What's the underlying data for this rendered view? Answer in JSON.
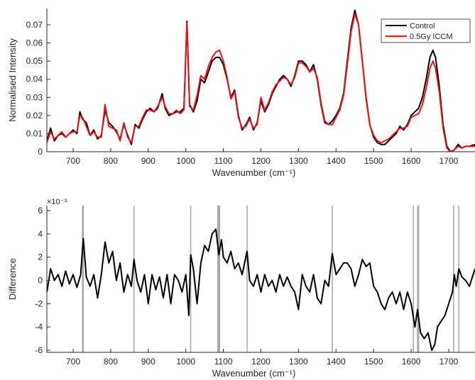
{
  "chart_data": [
    {
      "type": "line",
      "ylabel": "Normalised Intensity",
      "xlabel": "Wavenumber (cm⁻¹)",
      "legend": "upper right",
      "xlim": [
        630,
        1770
      ],
      "ylim": [
        0,
        0.079
      ],
      "xticks": [
        700,
        800,
        900,
        1000,
        1100,
        1200,
        1300,
        1400,
        1500,
        1600,
        1700
      ],
      "yticks": [
        0,
        0.01,
        0.02,
        0.03,
        0.04,
        0.05,
        0.06,
        0.07
      ],
      "x": [
        630,
        640,
        650,
        660,
        670,
        680,
        690,
        700,
        710,
        718,
        725,
        735,
        745,
        755,
        765,
        775,
        785,
        795,
        805,
        815,
        825,
        835,
        845,
        855,
        865,
        875,
        885,
        895,
        905,
        915,
        925,
        937,
        945,
        955,
        965,
        975,
        985,
        995,
        1003,
        1010,
        1020,
        1030,
        1040,
        1050,
        1060,
        1070,
        1080,
        1090,
        1100,
        1110,
        1120,
        1130,
        1140,
        1150,
        1160,
        1170,
        1180,
        1190,
        1200,
        1210,
        1220,
        1230,
        1240,
        1250,
        1260,
        1270,
        1280,
        1290,
        1300,
        1310,
        1320,
        1330,
        1340,
        1350,
        1360,
        1370,
        1380,
        1390,
        1400,
        1410,
        1420,
        1430,
        1440,
        1450,
        1460,
        1470,
        1480,
        1490,
        1500,
        1510,
        1520,
        1530,
        1540,
        1550,
        1560,
        1570,
        1580,
        1590,
        1600,
        1610,
        1620,
        1630,
        1640,
        1650,
        1658,
        1665,
        1675,
        1685,
        1695,
        1705,
        1715,
        1725,
        1735,
        1745,
        1755,
        1770
      ],
      "series": [
        {
          "name": "Control",
          "color": "#000000",
          "values": [
            0.006,
            0.013,
            0.006,
            0.009,
            0.01,
            0.008,
            0.01,
            0.012,
            0.01,
            0.022,
            0.018,
            0.016,
            0.009,
            0.012,
            0.007,
            0.009,
            0.023,
            0.016,
            0.014,
            0.011,
            0.007,
            0.015,
            0.009,
            0.004,
            0.015,
            0.013,
            0.018,
            0.022,
            0.024,
            0.022,
            0.024,
            0.032,
            0.024,
            0.02,
            0.021,
            0.022,
            0.022,
            0.024,
            0.072,
            0.026,
            0.022,
            0.028,
            0.04,
            0.038,
            0.044,
            0.05,
            0.052,
            0.052,
            0.048,
            0.04,
            0.03,
            0.034,
            0.02,
            0.012,
            0.015,
            0.019,
            0.012,
            0.016,
            0.028,
            0.022,
            0.026,
            0.032,
            0.036,
            0.04,
            0.042,
            0.04,
            0.036,
            0.042,
            0.05,
            0.05,
            0.048,
            0.044,
            0.048,
            0.04,
            0.026,
            0.016,
            0.015,
            0.017,
            0.02,
            0.024,
            0.032,
            0.05,
            0.068,
            0.078,
            0.07,
            0.05,
            0.03,
            0.015,
            0.008,
            0.005,
            0.004,
            0.004,
            0.006,
            0.008,
            0.01,
            0.014,
            0.012,
            0.015,
            0.02,
            0.022,
            0.024,
            0.03,
            0.04,
            0.052,
            0.056,
            0.052,
            0.036,
            0.015,
            0.003,
            0.0,
            0.001,
            0.004,
            0.002,
            0.003,
            0.003,
            0.004
          ]
        },
        {
          "name": "0.5Gy ICCM",
          "color": "#e8141b",
          "values": [
            0.005,
            0.011,
            0.007,
            0.009,
            0.011,
            0.008,
            0.01,
            0.011,
            0.011,
            0.02,
            0.019,
            0.014,
            0.009,
            0.011,
            0.008,
            0.008,
            0.026,
            0.014,
            0.013,
            0.012,
            0.006,
            0.016,
            0.008,
            0.005,
            0.014,
            0.014,
            0.019,
            0.023,
            0.023,
            0.022,
            0.025,
            0.03,
            0.025,
            0.021,
            0.021,
            0.023,
            0.021,
            0.023,
            0.071,
            0.025,
            0.023,
            0.031,
            0.042,
            0.04,
            0.047,
            0.052,
            0.055,
            0.056,
            0.05,
            0.041,
            0.029,
            0.033,
            0.019,
            0.013,
            0.014,
            0.018,
            0.013,
            0.015,
            0.03,
            0.023,
            0.027,
            0.033,
            0.037,
            0.039,
            0.041,
            0.04,
            0.037,
            0.041,
            0.049,
            0.049,
            0.047,
            0.044,
            0.046,
            0.041,
            0.027,
            0.017,
            0.015,
            0.015,
            0.019,
            0.023,
            0.031,
            0.048,
            0.066,
            0.076,
            0.07,
            0.05,
            0.029,
            0.015,
            0.009,
            0.006,
            0.005,
            0.006,
            0.007,
            0.009,
            0.011,
            0.013,
            0.013,
            0.014,
            0.019,
            0.02,
            0.021,
            0.026,
            0.035,
            0.046,
            0.05,
            0.046,
            0.033,
            0.013,
            0.002,
            0.0,
            0.001,
            0.003,
            0.002,
            0.003,
            0.003,
            0.003
          ]
        }
      ]
    },
    {
      "type": "line",
      "ylabel": "Difference",
      "xlabel": "Wavenumber (cm⁻¹)",
      "y_multiplier": "×10⁻³",
      "xlim": [
        630,
        1770
      ],
      "ylim": [
        -6.18,
        6.43
      ],
      "xticks": [
        700,
        800,
        900,
        1000,
        1100,
        1200,
        1300,
        1400,
        1500,
        1600,
        1700
      ],
      "yticks": [
        -6,
        -4,
        -2,
        0,
        2,
        4,
        6
      ],
      "highlight_x": [
        725,
        727,
        862,
        1013,
        1085,
        1087,
        1090,
        1163,
        1390,
        1606,
        1617,
        1620,
        1713,
        1727
      ],
      "highlight_color": "#a6a6a6",
      "x": [
        630,
        640,
        650,
        660,
        670,
        680,
        690,
        700,
        710,
        720,
        727,
        735,
        745,
        755,
        765,
        775,
        785,
        795,
        805,
        815,
        825,
        835,
        845,
        855,
        862,
        870,
        880,
        890,
        900,
        910,
        920,
        930,
        940,
        950,
        960,
        970,
        980,
        990,
        1000,
        1008,
        1013,
        1020,
        1030,
        1040,
        1050,
        1060,
        1070,
        1080,
        1088,
        1095,
        1100,
        1110,
        1120,
        1130,
        1140,
        1150,
        1163,
        1170,
        1180,
        1190,
        1200,
        1210,
        1220,
        1230,
        1240,
        1250,
        1260,
        1270,
        1280,
        1290,
        1300,
        1310,
        1320,
        1330,
        1340,
        1350,
        1360,
        1370,
        1380,
        1390,
        1400,
        1410,
        1420,
        1430,
        1440,
        1450,
        1460,
        1470,
        1480,
        1490,
        1500,
        1510,
        1520,
        1530,
        1540,
        1550,
        1560,
        1570,
        1580,
        1590,
        1600,
        1610,
        1617,
        1625,
        1635,
        1645,
        1655,
        1663,
        1670,
        1680,
        1690,
        1700,
        1710,
        1715,
        1720,
        1727,
        1735,
        1745,
        1755,
        1765,
        1770
      ],
      "series": [
        {
          "color": "#000000",
          "values": [
            -1,
            1,
            0,
            0.5,
            -0.5,
            0.8,
            -0.3,
            0.5,
            -0.6,
            0.5,
            3.6,
            0.3,
            -0.5,
            0.5,
            -1.5,
            0.5,
            3.3,
            1.5,
            2.5,
            0,
            1.5,
            -1,
            0.5,
            -0.5,
            1.8,
            0,
            -1,
            0.5,
            -2,
            0.5,
            -0.8,
            0.3,
            -1.5,
            0.5,
            -2,
            0.5,
            0,
            -1,
            0.5,
            -3,
            2.2,
            1,
            -2,
            1.5,
            3,
            2.5,
            4,
            4.4,
            2.2,
            3.5,
            2,
            1.5,
            2.5,
            1,
            1.5,
            0.5,
            2.5,
            0,
            -0.5,
            0.5,
            -1,
            0.5,
            -0.5,
            0,
            -1,
            0.5,
            -0.5,
            0.3,
            -0.5,
            -1,
            -2.5,
            0.5,
            -0.5,
            -1,
            0.5,
            -1.5,
            -2,
            0,
            -0.5,
            2.3,
            0.5,
            1,
            1.5,
            1.5,
            1,
            -0.5,
            0.5,
            1.8,
            1.2,
            1.5,
            -0.5,
            -1,
            -2,
            -2.5,
            -1.5,
            -1,
            -2,
            -1,
            -2.5,
            -1,
            -2,
            -4,
            -2.5,
            -4.5,
            -5,
            -4.5,
            -6,
            -5.5,
            -4,
            -3.5,
            -3,
            -2,
            -1,
            0.5,
            -0.5,
            1,
            0.3,
            0,
            -0.5,
            0.5,
            1
          ]
        }
      ]
    }
  ]
}
